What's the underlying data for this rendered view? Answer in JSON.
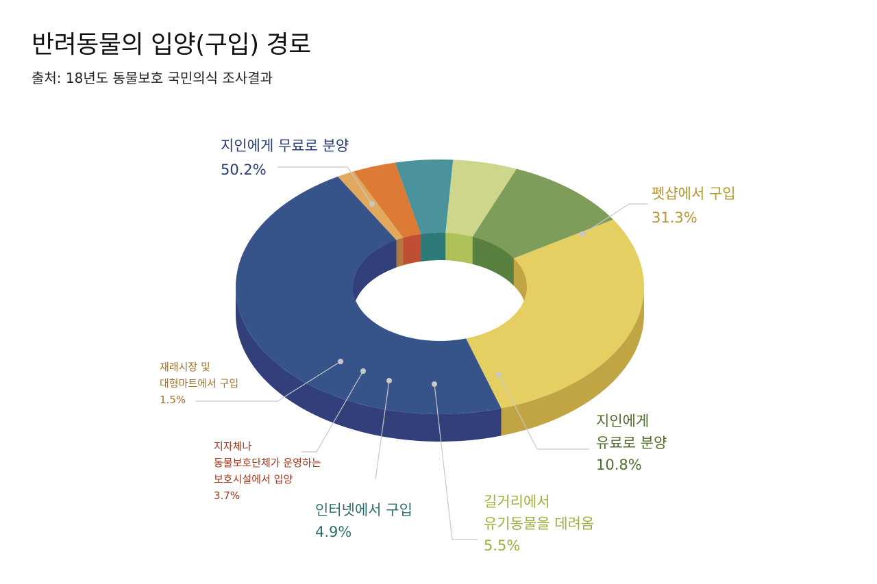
{
  "title": "반려동물의 입양(구입) 경로",
  "subtitle": "출처: 18년도 동물보호 국민의식 조사결과",
  "chart_data": {
    "type": "donut",
    "series": [
      {
        "name": "지인에게 무료로 분양",
        "value": 50.2,
        "label": "50.2%",
        "color": "#36548a",
        "side_color": "#323f7a",
        "label_color": "#2a3c78"
      },
      {
        "name": "펫샵에서 구입",
        "value": 31.3,
        "label": "31.3%",
        "color": "#e6cf62",
        "side_color": "#c1a444",
        "label_color": "#b8962e"
      },
      {
        "name": "지인에게 유료로 분양",
        "value": 10.8,
        "label": "10.8%",
        "color": "#7e9c5a",
        "side_color": "#5a8040",
        "label_color": "#4e6e2c"
      },
      {
        "name": "길거리에서 유기동물을 데려옴",
        "value": 5.5,
        "label": "5.5%",
        "color": "#cdd68a",
        "side_color": "#adc05a",
        "label_color": "#9fae3c"
      },
      {
        "name": "인터넷에서 구입",
        "value": 4.9,
        "label": "4.9%",
        "color": "#4a939c",
        "side_color": "#2e7a78",
        "label_color": "#2e6f6e"
      },
      {
        "name": "지자체나 동물보호단체가 운영하는 보호시설에서 입양",
        "value": 3.7,
        "label": "3.7%",
        "color": "#dc7a36",
        "side_color": "#bf4e34",
        "label_color": "#a5341c"
      },
      {
        "name": "재래시장 및 대형마트에서 구입",
        "value": 1.5,
        "label": "1.5%",
        "color": "#e2a95e",
        "side_color": "#b07842",
        "label_color": "#a6702a"
      }
    ]
  },
  "labels": [
    {
      "lines": [
        "지인에게 무료로 분양"
      ],
      "value": "50.2%"
    },
    {
      "lines": [
        "펫샵에서 구입"
      ],
      "value": "31.3%"
    },
    {
      "lines": [
        "지인에게",
        "유료로 분양"
      ],
      "value": "10.8%"
    },
    {
      "lines": [
        "길거리에서",
        "유기동물을 데려옴"
      ],
      "value": "5.5%"
    },
    {
      "lines": [
        "인터넷에서 구입"
      ],
      "value": "4.9%"
    },
    {
      "lines": [
        "지자체나",
        "동물보호단체가 운영하는",
        "보호시설에서 입양"
      ],
      "value": "3.7%"
    },
    {
      "lines": [
        "재래시장 및",
        "대형마트에서 구입"
      ],
      "value": "1.5%"
    }
  ]
}
